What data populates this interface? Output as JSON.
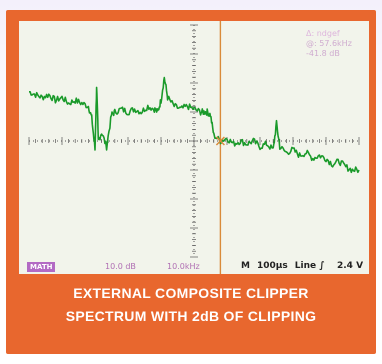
{
  "caption": {
    "line1": "EXTERNAL COMPOSITE CLIPPER",
    "line2": "SPECTRUM WITH 2dB OF CLIPPING"
  },
  "readout": {
    "line1": "Δ: ndgef",
    "line2": "@: 57.6kHz",
    "line3": "-41.8 dB"
  },
  "status": {
    "channel": "MATH",
    "scale": "10.0 dB",
    "freq": "10.0kHz"
  },
  "timebase": {
    "mode": "M",
    "time": "100µs",
    "trigger": "Line ∫",
    "level": "2.4 V"
  },
  "colors": {
    "frame": "#e8672e",
    "screen": "#f2f4eb",
    "trace": "#1a9a2a",
    "cursor": "#d98a3a",
    "grid": "#555555"
  },
  "chart_data": {
    "type": "line",
    "title": "EXTERNAL COMPOSITE CLIPPER SPECTRUM WITH 2dB OF CLIPPING",
    "xlabel": "",
    "ylabel": "",
    "x_divisions": 10,
    "y_divisions": 8,
    "xlim": [
      0,
      10
    ],
    "ylim": [
      -8,
      0
    ],
    "grid": true,
    "cursor_x": 5.8,
    "series": [
      {
        "x": [
          0,
          0.2,
          0.4,
          0.6,
          0.8,
          1.0,
          1.2,
          1.4,
          1.6,
          1.8,
          1.9,
          2.0,
          2.05,
          2.1,
          2.2,
          2.35,
          2.5,
          2.6,
          2.8,
          3.0,
          3.2,
          3.4,
          3.6,
          3.8,
          3.9,
          4.0,
          4.1,
          4.2,
          4.4,
          4.6,
          4.8,
          5.0,
          5.2,
          5.3,
          5.4,
          5.5,
          5.6,
          5.8,
          6.0,
          6.2,
          6.4,
          6.6,
          6.8,
          7.0,
          7.2,
          7.4,
          7.5,
          7.6,
          7.8,
          8.0,
          8.2,
          8.4,
          8.6,
          8.8,
          9.0,
          9.2,
          9.4,
          9.6,
          9.8,
          10.0
        ],
        "y": [
          -2.3,
          -2.4,
          -2.5,
          -2.4,
          -2.6,
          -2.5,
          -2.7,
          -2.6,
          -2.7,
          -2.8,
          -3.2,
          -4.3,
          -2.1,
          -4.0,
          -3.7,
          -4.2,
          -3.1,
          -3.0,
          -2.9,
          -3.0,
          -2.9,
          -3.0,
          -2.8,
          -2.9,
          -3.0,
          -2.6,
          -1.8,
          -2.5,
          -2.8,
          -2.9,
          -2.8,
          -2.9,
          -3.0,
          -3.0,
          -3.0,
          -3.1,
          -3.8,
          -4.0,
          -3.9,
          -4.1,
          -4.0,
          -4.1,
          -4.0,
          -4.2,
          -4.1,
          -4.3,
          -3.4,
          -4.2,
          -4.4,
          -4.3,
          -4.5,
          -4.4,
          -4.6,
          -4.5,
          -4.6,
          -4.8,
          -4.7,
          -4.9,
          -5.0,
          -5.0
        ]
      }
    ]
  }
}
